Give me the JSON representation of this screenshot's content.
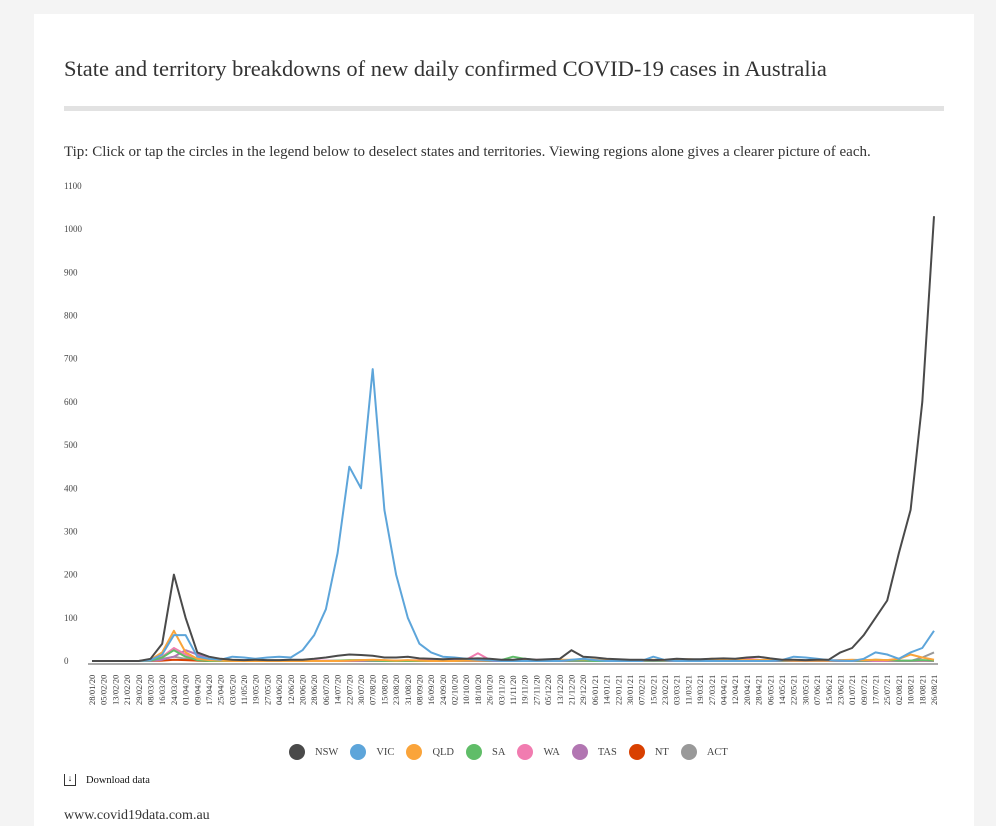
{
  "title": "State and territory breakdowns of new daily confirmed COVID-19 cases in Australia",
  "tip": "Tip: Click or tap the circles in the legend below to deselect states and territories. Viewing regions alone gives a clearer picture of each.",
  "download_label": "Download data",
  "footer": "www.covid19data.com.au",
  "chart_data": {
    "type": "line",
    "title": "State and territory breakdowns of new daily confirmed COVID-19 cases in Australia",
    "ylim": [
      0,
      1100
    ],
    "yticks": [
      0,
      100,
      200,
      300,
      400,
      500,
      600,
      700,
      800,
      900,
      1000,
      1100
    ],
    "x": [
      "28/01/20",
      "05/02/20",
      "13/02/20",
      "21/02/20",
      "29/02/20",
      "08/03/20",
      "16/03/20",
      "24/03/20",
      "01/04/20",
      "09/04/20",
      "17/04/20",
      "25/04/20",
      "03/05/20",
      "11/05/20",
      "19/05/20",
      "27/05/20",
      "04/06/20",
      "12/06/20",
      "20/06/20",
      "28/06/20",
      "06/07/20",
      "14/07/20",
      "22/07/20",
      "30/07/20",
      "07/08/20",
      "15/08/20",
      "23/08/20",
      "31/08/20",
      "08/09/20",
      "16/09/20",
      "24/09/20",
      "02/10/20",
      "10/10/20",
      "18/10/20",
      "26/10/20",
      "03/11/20",
      "11/11/20",
      "19/11/20",
      "27/11/20",
      "05/12/20",
      "13/12/20",
      "21/12/20",
      "29/12/20",
      "06/01/21",
      "14/01/21",
      "22/01/21",
      "30/01/21",
      "07/02/21",
      "15/02/21",
      "23/02/21",
      "03/03/21",
      "11/03/21",
      "19/03/21",
      "27/03/21",
      "04/04/21",
      "12/04/21",
      "20/04/21",
      "28/04/21",
      "06/05/21",
      "14/05/21",
      "22/05/21",
      "30/05/21",
      "07/06/21",
      "15/06/21",
      "23/06/21",
      "01/07/21",
      "09/07/21",
      "17/07/21",
      "25/07/21",
      "02/08/21",
      "10/08/21",
      "18/08/21",
      "26/08/21"
    ],
    "series": [
      {
        "name": "NSW",
        "color": "#4a4a4a",
        "values": [
          0,
          0,
          0,
          0,
          0,
          5,
          40,
          200,
          100,
          20,
          10,
          5,
          3,
          2,
          3,
          2,
          2,
          3,
          3,
          5,
          8,
          12,
          15,
          14,
          12,
          8,
          8,
          10,
          6,
          5,
          4,
          5,
          5,
          6,
          5,
          3,
          3,
          5,
          3,
          4,
          5,
          25,
          10,
          8,
          5,
          4,
          3,
          3,
          2,
          3,
          5,
          4,
          4,
          5,
          6,
          5,
          8,
          10,
          6,
          3,
          3,
          2,
          3,
          3,
          20,
          30,
          60,
          100,
          140,
          250,
          350,
          600,
          1030
        ]
      },
      {
        "name": "VIC",
        "color": "#5da5da",
        "values": [
          0,
          0,
          0,
          0,
          0,
          2,
          15,
          60,
          60,
          10,
          5,
          3,
          10,
          8,
          5,
          8,
          10,
          8,
          25,
          60,
          120,
          250,
          450,
          400,
          676,
          350,
          200,
          100,
          40,
          20,
          10,
          8,
          5,
          3,
          2,
          0,
          0,
          0,
          0,
          0,
          0,
          3,
          5,
          2,
          0,
          0,
          0,
          0,
          10,
          2,
          0,
          0,
          0,
          0,
          0,
          0,
          0,
          0,
          0,
          2,
          10,
          8,
          5,
          2,
          1,
          0,
          5,
          20,
          15,
          5,
          20,
          30,
          70
        ]
      },
      {
        "name": "QLD",
        "color": "#faa43a",
        "values": [
          0,
          0,
          0,
          0,
          0,
          3,
          20,
          70,
          20,
          5,
          2,
          1,
          0,
          0,
          0,
          0,
          0,
          0,
          0,
          0,
          0,
          0,
          1,
          2,
          3,
          2,
          1,
          2,
          1,
          0,
          0,
          0,
          1,
          1,
          2,
          2,
          2,
          3,
          2,
          2,
          3,
          3,
          4,
          3,
          2,
          2,
          1,
          2,
          3,
          2,
          3,
          4,
          3,
          5,
          3,
          2,
          2,
          2,
          3,
          2,
          1,
          1,
          1,
          1,
          2,
          3,
          2,
          3,
          2,
          5,
          15,
          8,
          3
        ]
      },
      {
        "name": "SA",
        "color": "#60bd68",
        "values": [
          0,
          0,
          0,
          0,
          0,
          1,
          8,
          25,
          10,
          2,
          0,
          0,
          0,
          0,
          0,
          0,
          0,
          0,
          0,
          0,
          0,
          1,
          2,
          2,
          1,
          0,
          0,
          0,
          0,
          0,
          0,
          0,
          1,
          1,
          1,
          2,
          10,
          5,
          2,
          1,
          1,
          1,
          1,
          0,
          0,
          0,
          1,
          1,
          1,
          1,
          1,
          1,
          1,
          1,
          1,
          1,
          1,
          2,
          1,
          1,
          1,
          1,
          1,
          1,
          1,
          1,
          1,
          3,
          2,
          1,
          1,
          2,
          1
        ]
      },
      {
        "name": "WA",
        "color": "#f17cb0",
        "values": [
          0,
          0,
          0,
          0,
          0,
          1,
          10,
          30,
          15,
          5,
          2,
          1,
          1,
          2,
          1,
          1,
          1,
          2,
          2,
          1,
          1,
          1,
          1,
          2,
          2,
          1,
          1,
          1,
          2,
          2,
          2,
          2,
          3,
          18,
          3,
          2,
          2,
          2,
          3,
          2,
          2,
          2,
          2,
          2,
          3,
          2,
          2,
          2,
          2,
          2,
          2,
          3,
          3,
          2,
          3,
          4,
          5,
          3,
          2,
          2,
          2,
          1,
          2,
          1,
          2,
          1,
          2,
          1,
          1,
          1,
          1,
          1,
          1
        ]
      },
      {
        "name": "TAS",
        "color": "#b276b2",
        "values": [
          0,
          0,
          0,
          0,
          0,
          0,
          3,
          10,
          25,
          15,
          5,
          1,
          0,
          0,
          0,
          0,
          0,
          0,
          0,
          0,
          0,
          0,
          0,
          0,
          0,
          0,
          0,
          0,
          0,
          0,
          0,
          0,
          0,
          0,
          0,
          0,
          0,
          0,
          0,
          0,
          0,
          0,
          0,
          0,
          0,
          0,
          0,
          0,
          0,
          0,
          0,
          0,
          0,
          0,
          0,
          0,
          0,
          0,
          0,
          0,
          0,
          0,
          0,
          0,
          0,
          0,
          0,
          0,
          0,
          0,
          0,
          0,
          0
        ]
      },
      {
        "name": "NT",
        "color": "#d94000",
        "values": [
          0,
          0,
          0,
          0,
          0,
          0,
          1,
          3,
          2,
          1,
          0,
          0,
          0,
          0,
          0,
          0,
          0,
          0,
          0,
          0,
          0,
          0,
          0,
          0,
          0,
          0,
          0,
          0,
          0,
          0,
          0,
          0,
          0,
          0,
          0,
          0,
          0,
          0,
          0,
          0,
          0,
          0,
          0,
          0,
          0,
          0,
          0,
          0,
          0,
          0,
          0,
          0,
          0,
          0,
          0,
          0,
          0,
          0,
          0,
          0,
          0,
          0,
          0,
          0,
          1,
          0,
          0,
          0,
          0,
          0,
          0,
          0,
          0
        ]
      },
      {
        "name": "ACT",
        "color": "#999999",
        "values": [
          0,
          0,
          0,
          0,
          0,
          1,
          5,
          10,
          5,
          1,
          0,
          0,
          0,
          0,
          0,
          0,
          0,
          0,
          0,
          0,
          0,
          0,
          0,
          0,
          0,
          0,
          0,
          0,
          0,
          0,
          0,
          0,
          0,
          0,
          0,
          0,
          0,
          0,
          0,
          0,
          0,
          0,
          0,
          0,
          0,
          0,
          0,
          0,
          0,
          0,
          0,
          0,
          0,
          0,
          0,
          0,
          0,
          0,
          0,
          0,
          0,
          0,
          0,
          0,
          0,
          0,
          0,
          0,
          0,
          0,
          0,
          8,
          20
        ]
      }
    ],
    "legend_position": "bottom"
  }
}
